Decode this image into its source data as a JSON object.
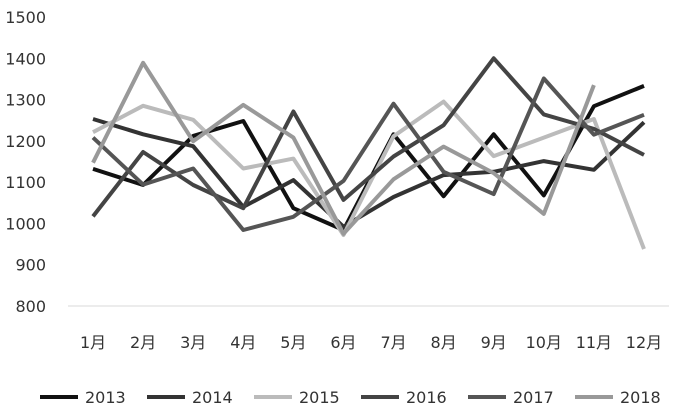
{
  "chart_data": {
    "type": "line",
    "categories": [
      "1月",
      "2月",
      "3月",
      "4月",
      "5月",
      "6月",
      "7月",
      "8月",
      "9月",
      "10月",
      "11月",
      "12月"
    ],
    "ylim": [
      800,
      1500
    ],
    "yticks": [
      800,
      900,
      1000,
      1100,
      1200,
      1300,
      1400,
      1500
    ],
    "grid": false,
    "legend_position": "bottom",
    "series": [
      {
        "name": "2013",
        "color": "#111111",
        "values": [
          1132,
          1093,
          1212,
          1248,
          1037,
          984,
          1216,
          1066,
          1216,
          1068,
          1284,
          1333
        ]
      },
      {
        "name": "2014",
        "color": "#333333",
        "values": [
          1253,
          1216,
          1187,
          1040,
          1105,
          992,
          1064,
          1117,
          1125,
          1151,
          1130,
          1245
        ]
      },
      {
        "name": "2015",
        "color": "#bbbbbb",
        "values": [
          1221,
          1285,
          1251,
          1133,
          1157,
          972,
          1211,
          1295,
          1163,
          1208,
          1253,
          938
        ]
      },
      {
        "name": "2016",
        "color": "#444444",
        "values": [
          1017,
          1173,
          1093,
          1037,
          1271,
          1057,
          1162,
          1238,
          1400,
          1264,
          1229,
          1166
        ]
      },
      {
        "name": "2017",
        "color": "#555555",
        "values": [
          1208,
          1094,
          1133,
          984,
          1016,
          1103,
          1290,
          1125,
          1071,
          1351,
          1215,
          1263
        ]
      },
      {
        "name": "2018",
        "color": "#999999",
        "values": [
          1147,
          1389,
          1199,
          1287,
          1208,
          975,
          1107,
          1186,
          1122,
          1023,
          1335,
          null
        ]
      }
    ]
  }
}
